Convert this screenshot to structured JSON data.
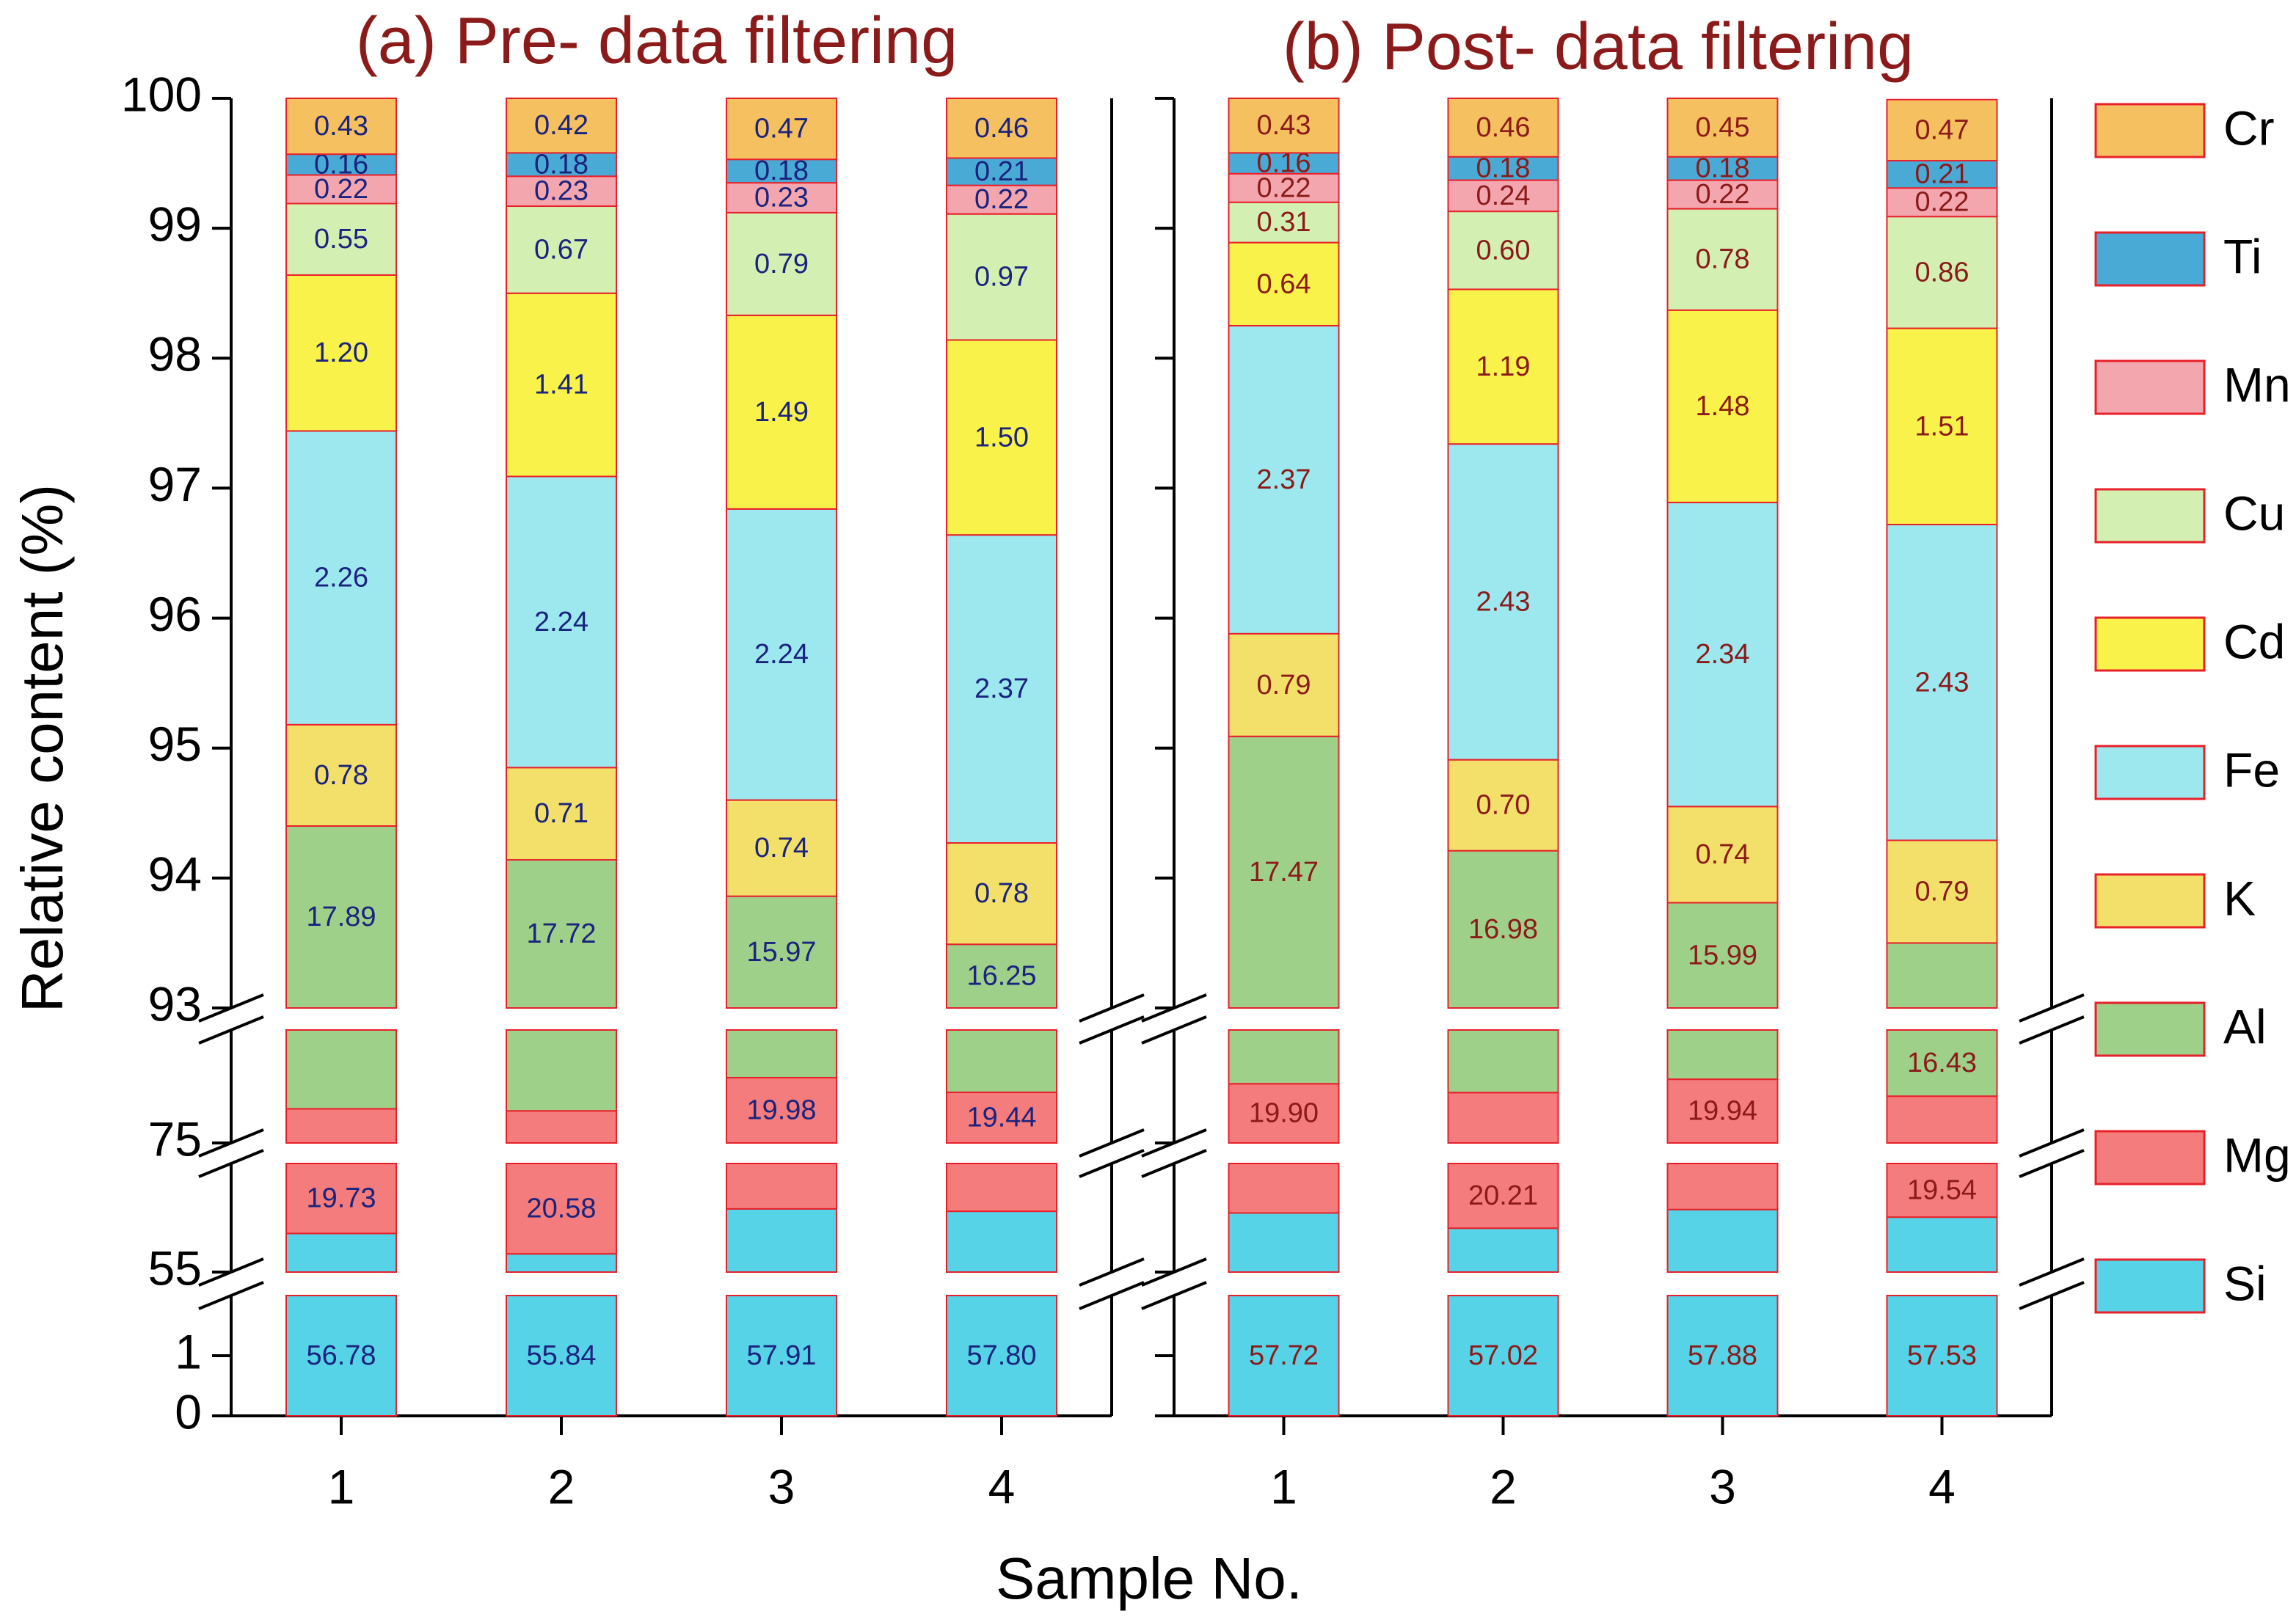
{
  "chart_data": {
    "type": "stacked_bar",
    "y_label": "Relative content (%)",
    "x_label": "Sample No.",
    "ylim": [
      0,
      100
    ],
    "y_segments": [
      [
        0,
        2
      ],
      [
        55,
        60
      ],
      [
        75,
        80
      ],
      [
        93,
        100
      ]
    ],
    "yticks": [
      0,
      1,
      55,
      75,
      93,
      94,
      95,
      96,
      97,
      98,
      99,
      100
    ],
    "categories": [
      "1",
      "2",
      "3",
      "4"
    ],
    "bar_edge_color": "#e8202a",
    "series": [
      {
        "name": "Si",
        "color": "#56d3e6"
      },
      {
        "name": "Mg",
        "color": "#f47c7c"
      },
      {
        "name": "Al",
        "color": "#9fd08a"
      },
      {
        "name": "K",
        "color": "#f3e06a"
      },
      {
        "name": "Fe",
        "color": "#9ce8ee"
      },
      {
        "name": "Cd",
        "color": "#f9f24a"
      },
      {
        "name": "Cu",
        "color": "#d3efb2"
      },
      {
        "name": "Mn",
        "color": "#f4a6ae"
      },
      {
        "name": "Ti",
        "color": "#4aaad6"
      },
      {
        "name": "Cr",
        "color": "#f5c060"
      }
    ],
    "panels": [
      {
        "title": "(a) Pre- data filtering",
        "label_color": "#1a237e",
        "series": [
          {
            "values": [
              56.78,
              55.84,
              57.91,
              57.8
            ],
            "value_labels": [
              "56.78",
              "55.84",
              "57.91",
              "57.80"
            ]
          },
          {
            "values": [
              19.73,
              20.58,
              19.98,
              19.44
            ],
            "value_labels": [
              "19.73",
              "20.58",
              "19.98",
              "19.44"
            ]
          },
          {
            "values": [
              17.89,
              17.72,
              15.97,
              16.25
            ],
            "value_labels": [
              "17.89",
              "17.72",
              "15.97",
              "16.25"
            ]
          },
          {
            "values": [
              0.78,
              0.71,
              0.74,
              0.78
            ],
            "value_labels": [
              "0.78",
              "0.71",
              "0.74",
              "0.78"
            ]
          },
          {
            "values": [
              2.26,
              2.24,
              2.24,
              2.37
            ],
            "value_labels": [
              "2.26",
              "2.24",
              "2.24",
              "2.37"
            ]
          },
          {
            "values": [
              1.2,
              1.41,
              1.49,
              1.5
            ],
            "value_labels": [
              "1.20",
              "1.41",
              "1.49",
              "1.50"
            ]
          },
          {
            "values": [
              0.55,
              0.67,
              0.79,
              0.97
            ],
            "value_labels": [
              "0.55",
              "0.67",
              "0.79",
              "0.97"
            ]
          },
          {
            "values": [
              0.22,
              0.23,
              0.23,
              0.22
            ],
            "value_labels": [
              "0.22",
              "0.23",
              "0.23",
              "0.22"
            ]
          },
          {
            "values": [
              0.16,
              0.18,
              0.18,
              0.21
            ],
            "value_labels": [
              "0.16",
              "0.18",
              "0.18",
              "0.21"
            ]
          },
          {
            "values": [
              0.43,
              0.42,
              0.47,
              0.46
            ],
            "value_labels": [
              "0.43",
              "0.42",
              "0.47",
              "0.46"
            ]
          }
        ]
      },
      {
        "title": "(b) Post- data filtering",
        "label_color": "#8b1a1a",
        "series": [
          {
            "values": [
              57.72,
              57.02,
              57.88,
              57.53
            ],
            "value_labels": [
              "57.72",
              "57.02",
              "57.88",
              "57.53"
            ]
          },
          {
            "values": [
              19.9,
              20.21,
              19.94,
              19.54
            ],
            "value_labels": [
              "19.90",
              "20.21",
              "19.94",
              "19.54"
            ]
          },
          {
            "values": [
              17.47,
              16.98,
              15.99,
              16.43
            ],
            "value_labels": [
              "17.47",
              "16.98",
              "15.99",
              "16.43"
            ]
          },
          {
            "values": [
              0.79,
              0.7,
              0.74,
              0.79
            ],
            "value_labels": [
              "0.79",
              "0.70",
              "0.74",
              "0.79"
            ]
          },
          {
            "values": [
              2.37,
              2.43,
              2.34,
              2.43
            ],
            "value_labels": [
              "2.37",
              "2.43",
              "2.34",
              "2.43"
            ]
          },
          {
            "values": [
              0.64,
              1.19,
              1.48,
              1.51
            ],
            "value_labels": [
              "0.64",
              "1.19",
              "1.48",
              "1.51"
            ]
          },
          {
            "values": [
              0.31,
              0.6,
              0.78,
              0.86
            ],
            "value_labels": [
              "0.31",
              "0.60",
              "0.78",
              "0.86"
            ]
          },
          {
            "values": [
              0.22,
              0.24,
              0.22,
              0.22
            ],
            "value_labels": [
              "0.22",
              "0.24",
              "0.22",
              "0.22"
            ]
          },
          {
            "values": [
              0.16,
              0.18,
              0.18,
              0.21
            ],
            "value_labels": [
              "0.16",
              "0.18",
              "0.18",
              "0.21"
            ]
          },
          {
            "values": [
              0.43,
              0.46,
              0.45,
              0.47
            ],
            "value_labels": [
              "0.43",
              "0.46",
              "0.45",
              "0.47"
            ]
          }
        ]
      }
    ]
  }
}
